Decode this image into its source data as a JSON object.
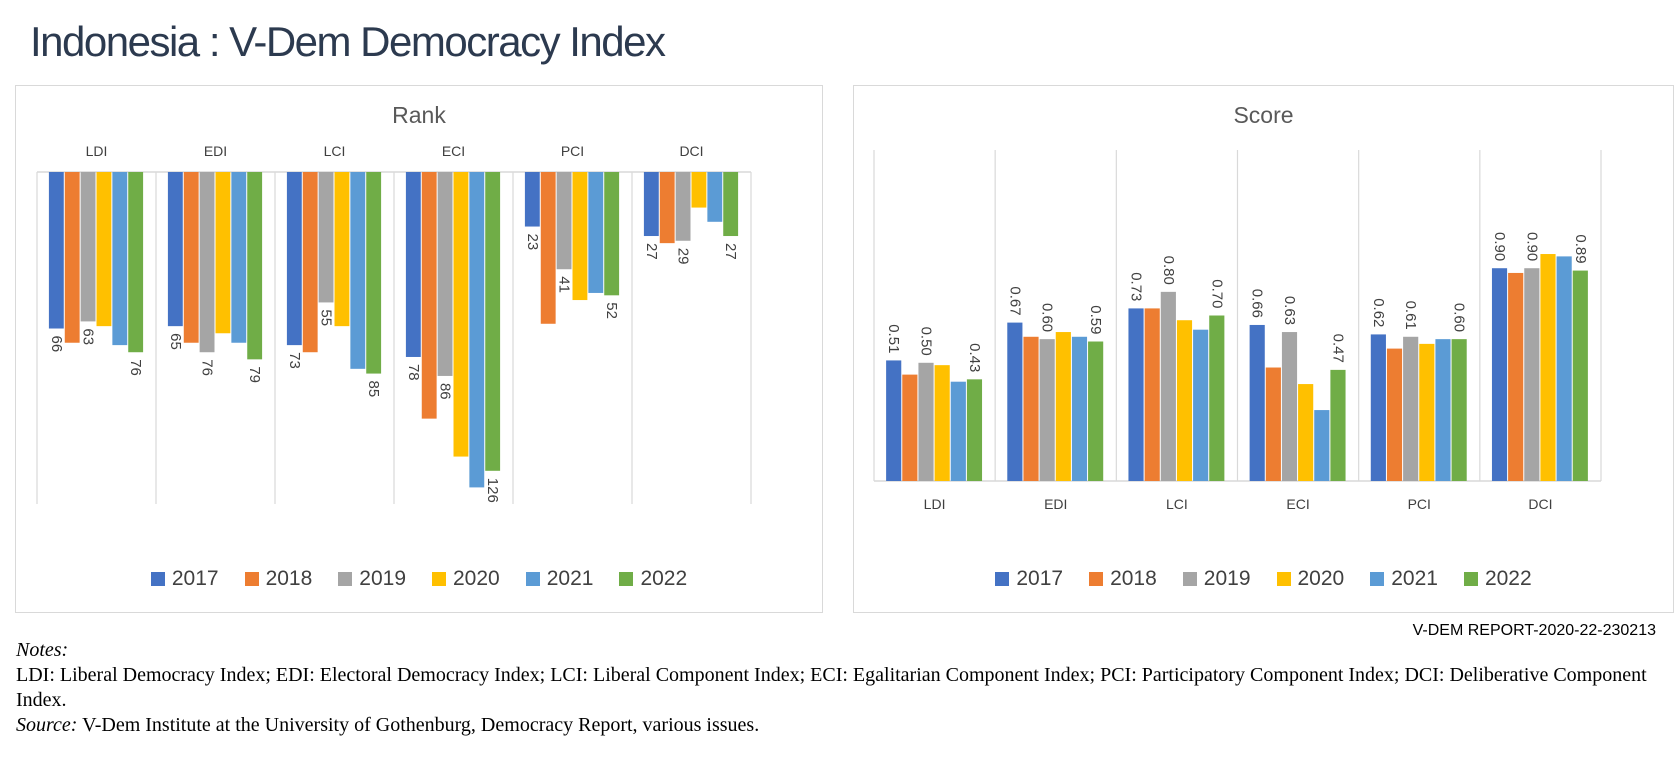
{
  "title": "Indonesia : V-Dem Democracy Index",
  "report_id": "V-DEM REPORT-2020-22-230213",
  "years": [
    "2017",
    "2018",
    "2019",
    "2020",
    "2021",
    "2022"
  ],
  "colors": [
    "#4472c4",
    "#ed7d31",
    "#a5a5a5",
    "#ffc000",
    "#5b9bd5",
    "#70ad47"
  ],
  "notes": {
    "label": "Notes:",
    "text": "LDI: Liberal Democracy Index; EDI: Electoral Democracy Index; LCI: Liberal Component Index; ECI: Egalitarian  Component Index; PCI: Participatory Component Index; DCI: Deliberative Component Index.",
    "source_label": "Source:",
    "source_text": " V-Dem Institute at the University of Gothenburg, Democracy Report, various issues."
  },
  "chart_data": [
    {
      "type": "bar",
      "title": "Rank",
      "axis": "reversed",
      "ylim": [
        0,
        140
      ],
      "categories": [
        "LDI",
        "EDI",
        "LCI",
        "ECI",
        "PCI",
        "DCI"
      ],
      "series": [
        {
          "name": "2017",
          "values": [
            66,
            65,
            73,
            78,
            23,
            27
          ]
        },
        {
          "name": "2018",
          "values": [
            72,
            72,
            76,
            104,
            64,
            30
          ]
        },
        {
          "name": "2019",
          "values": [
            63,
            76,
            55,
            86,
            41,
            29
          ]
        },
        {
          "name": "2020",
          "values": [
            65,
            68,
            65,
            120,
            54,
            15
          ]
        },
        {
          "name": "2021",
          "values": [
            73,
            72,
            83,
            133,
            51,
            21
          ]
        },
        {
          "name": "2022",
          "values": [
            76,
            79,
            85,
            126,
            52,
            27
          ]
        }
      ],
      "labels": [
        {
          "series": "2017",
          "category": "LDI",
          "text": "66"
        },
        {
          "series": "2019",
          "category": "LDI",
          "text": "63"
        },
        {
          "series": "2022",
          "category": "LDI",
          "text": "76"
        },
        {
          "series": "2017",
          "category": "EDI",
          "text": "65"
        },
        {
          "series": "2019",
          "category": "EDI",
          "text": "76"
        },
        {
          "series": "2022",
          "category": "EDI",
          "text": "79"
        },
        {
          "series": "2017",
          "category": "LCI",
          "text": "73"
        },
        {
          "series": "2019",
          "category": "LCI",
          "text": "55"
        },
        {
          "series": "2022",
          "category": "LCI",
          "text": "85"
        },
        {
          "series": "2017",
          "category": "ECI",
          "text": "78"
        },
        {
          "series": "2019",
          "category": "ECI",
          "text": "86"
        },
        {
          "series": "2022",
          "category": "ECI",
          "text": "126"
        },
        {
          "series": "2017",
          "category": "PCI",
          "text": "23"
        },
        {
          "series": "2019",
          "category": "PCI",
          "text": "41"
        },
        {
          "series": "2022",
          "category": "PCI",
          "text": "52"
        },
        {
          "series": "2017",
          "category": "DCI",
          "text": "27"
        },
        {
          "series": "2019",
          "category": "DCI",
          "text": "29"
        },
        {
          "series": "2022",
          "category": "DCI",
          "text": "27"
        }
      ],
      "legend": "bottom"
    },
    {
      "type": "bar",
      "title": "Score",
      "axis": "normal",
      "ylim": [
        0,
        1.4
      ],
      "categories": [
        "LDI",
        "EDI",
        "LCI",
        "ECI",
        "PCI",
        "DCI"
      ],
      "series": [
        {
          "name": "2017",
          "values": [
            0.51,
            0.67,
            0.73,
            0.66,
            0.62,
            0.9
          ]
        },
        {
          "name": "2018",
          "values": [
            0.45,
            0.61,
            0.73,
            0.48,
            0.56,
            0.88
          ]
        },
        {
          "name": "2019",
          "values": [
            0.5,
            0.6,
            0.8,
            0.63,
            0.61,
            0.9
          ]
        },
        {
          "name": "2020",
          "values": [
            0.49,
            0.63,
            0.68,
            0.41,
            0.58,
            0.96
          ]
        },
        {
          "name": "2021",
          "values": [
            0.42,
            0.61,
            0.64,
            0.3,
            0.6,
            0.95
          ]
        },
        {
          "name": "2022",
          "values": [
            0.43,
            0.59,
            0.7,
            0.47,
            0.6,
            0.89
          ]
        }
      ],
      "labels": [
        {
          "series": "2017",
          "category": "LDI",
          "text": "0.51"
        },
        {
          "series": "2019",
          "category": "LDI",
          "text": "0.50"
        },
        {
          "series": "2022",
          "category": "LDI",
          "text": "0.43"
        },
        {
          "series": "2017",
          "category": "EDI",
          "text": "0.67"
        },
        {
          "series": "2019",
          "category": "EDI",
          "text": "0.60"
        },
        {
          "series": "2022",
          "category": "EDI",
          "text": "0.59"
        },
        {
          "series": "2017",
          "category": "LCI",
          "text": "0.73"
        },
        {
          "series": "2019",
          "category": "LCI",
          "text": "0.80"
        },
        {
          "series": "2022",
          "category": "LCI",
          "text": "0.70"
        },
        {
          "series": "2017",
          "category": "ECI",
          "text": "0.66"
        },
        {
          "series": "2019",
          "category": "ECI",
          "text": "0.63"
        },
        {
          "series": "2022",
          "category": "ECI",
          "text": "0.47"
        },
        {
          "series": "2017",
          "category": "PCI",
          "text": "0.62"
        },
        {
          "series": "2019",
          "category": "PCI",
          "text": "0.61"
        },
        {
          "series": "2022",
          "category": "PCI",
          "text": "0.60"
        },
        {
          "series": "2017",
          "category": "DCI",
          "text": "0.90"
        },
        {
          "series": "2019",
          "category": "DCI",
          "text": "0.90"
        },
        {
          "series": "2022",
          "category": "DCI",
          "text": "0.89"
        }
      ],
      "legend": "bottom"
    }
  ]
}
